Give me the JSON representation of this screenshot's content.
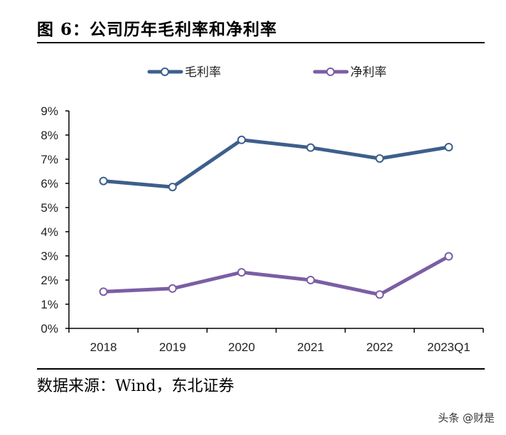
{
  "figure_title": "图 6：公司历年毛利率和净利率",
  "source": "数据来源：Wind，东北证券",
  "watermark": "头条 @财是",
  "colors": {
    "gross": "#3d5f8c",
    "net": "#7b5ea4",
    "axis": "#000000"
  },
  "chart_data": {
    "type": "line",
    "title": "公司历年毛利率和净利率",
    "categories": [
      "2018",
      "2019",
      "2020",
      "2021",
      "2022",
      "2023Q1"
    ],
    "series": [
      {
        "name": "毛利率",
        "values": [
          6.1,
          5.85,
          7.8,
          7.48,
          7.03,
          7.5
        ]
      },
      {
        "name": "净利率",
        "values": [
          1.52,
          1.65,
          2.32,
          2.0,
          1.4,
          2.98
        ]
      }
    ],
    "ylim": [
      0,
      9
    ],
    "yticks": [
      0,
      1,
      2,
      3,
      4,
      5,
      6,
      7,
      8,
      9
    ],
    "ytick_labels": [
      "0%",
      "1%",
      "2%",
      "3%",
      "4%",
      "5%",
      "6%",
      "7%",
      "8%",
      "9%"
    ],
    "xlabel": "",
    "ylabel": "",
    "legend_position": "top"
  }
}
